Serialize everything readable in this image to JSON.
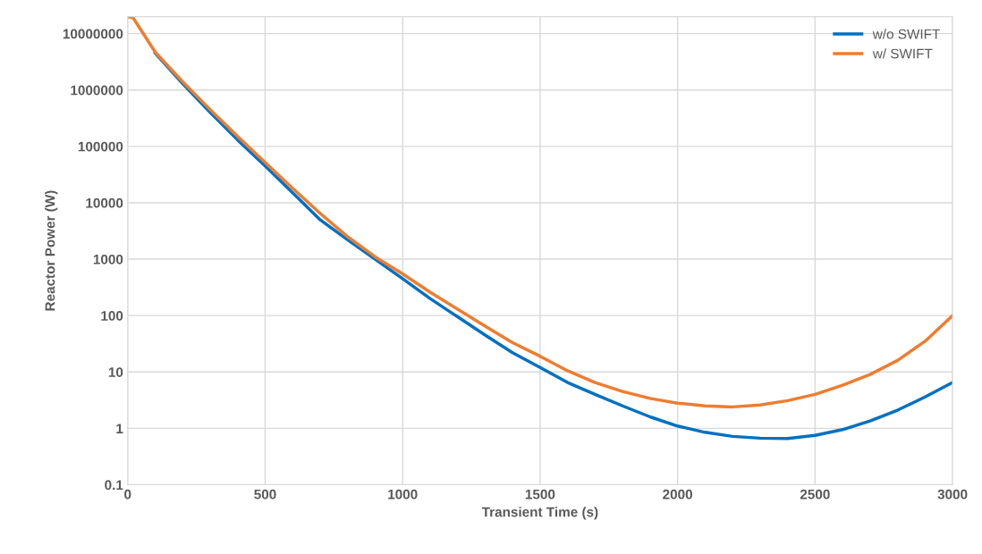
{
  "chart_data": {
    "type": "line",
    "xlabel": "Transient Time (s)",
    "ylabel": "Reactor Power (W)",
    "log": "y",
    "grid": true,
    "legend": "top right",
    "xlim": [
      0,
      3000
    ],
    "xticks": [
      0,
      500,
      1000,
      1500,
      2000,
      2500,
      3000
    ],
    "ylim": [
      0.1,
      20000000
    ],
    "yticks": [
      0.1,
      1,
      10,
      100,
      1000,
      10000,
      100000,
      1000000,
      10000000
    ],
    "x": [
      0,
      20,
      100,
      200,
      300,
      400,
      500,
      600,
      700,
      800,
      900,
      1000,
      1100,
      1200,
      1300,
      1400,
      1500,
      1600,
      1700,
      1800,
      1900,
      2000,
      2100,
      2200,
      2300,
      2400,
      2500,
      2600,
      2700,
      2800,
      2900,
      3000
    ],
    "series": [
      {
        "name": "w/o SWIFT",
        "color": "#0070c0",
        "values": [
          null,
          null,
          4500000,
          1300000,
          400000,
          130000,
          45000,
          15000,
          5000,
          2200,
          1000,
          450,
          200,
          95,
          45,
          22,
          12,
          6.5,
          4,
          2.5,
          1.6,
          1.1,
          0.85,
          0.72,
          0.67,
          0.66,
          0.75,
          0.95,
          1.35,
          2.1,
          3.6,
          6.5
        ]
      },
      {
        "name": "w/ SWIFT",
        "color": "#ed7d31",
        "values": [
          20000000,
          19000000,
          4700000,
          1400000,
          450000,
          150000,
          52000,
          18000,
          6500,
          2500,
          1100,
          550,
          260,
          130,
          65,
          33,
          19,
          10.5,
          6.5,
          4.5,
          3.4,
          2.8,
          2.5,
          2.4,
          2.6,
          3.1,
          4,
          5.8,
          9,
          16,
          35,
          100
        ]
      }
    ]
  }
}
